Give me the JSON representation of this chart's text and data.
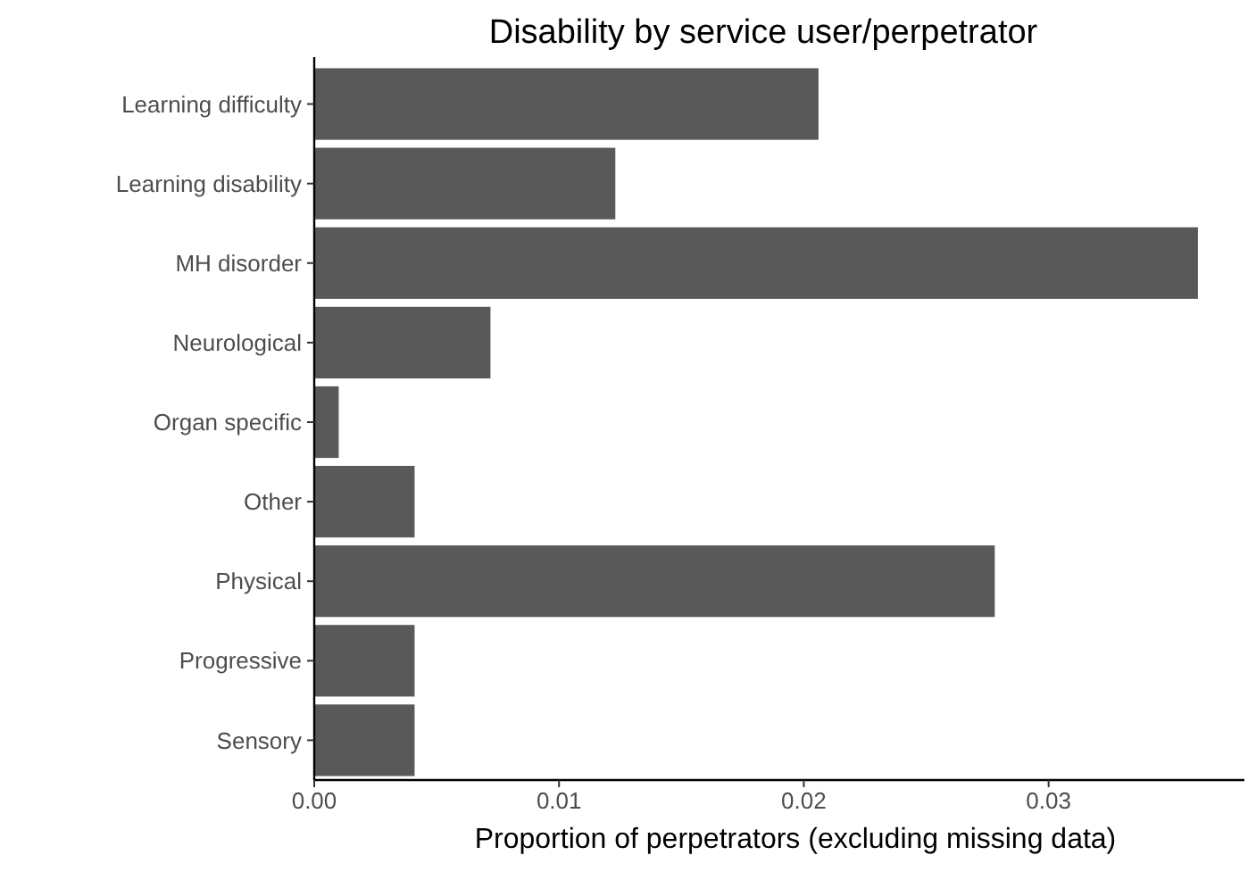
{
  "chart_data": {
    "type": "bar",
    "orientation": "horizontal",
    "title": "Disability by service user/perpetrator",
    "xlabel": "Proportion of perpetrators (excluding missing data)",
    "categories": [
      "Learning difficulty",
      "Learning disability",
      "MH disorder",
      "Neurological",
      "Organ specific",
      "Other",
      "Physical",
      "Progressive",
      "Sensory"
    ],
    "values": [
      0.0206,
      0.0123,
      0.0361,
      0.0072,
      0.001,
      0.0041,
      0.0278,
      0.0041,
      0.0041
    ],
    "color": "#595959",
    "xlim": [
      0,
      0.038
    ],
    "xticks": [
      {
        "value": 0,
        "label": "0.00"
      },
      {
        "value": 0.01,
        "label": "0.01"
      },
      {
        "value": 0.02,
        "label": "0.02"
      },
      {
        "value": 0.03,
        "label": "0.03"
      }
    ],
    "grid": false
  }
}
